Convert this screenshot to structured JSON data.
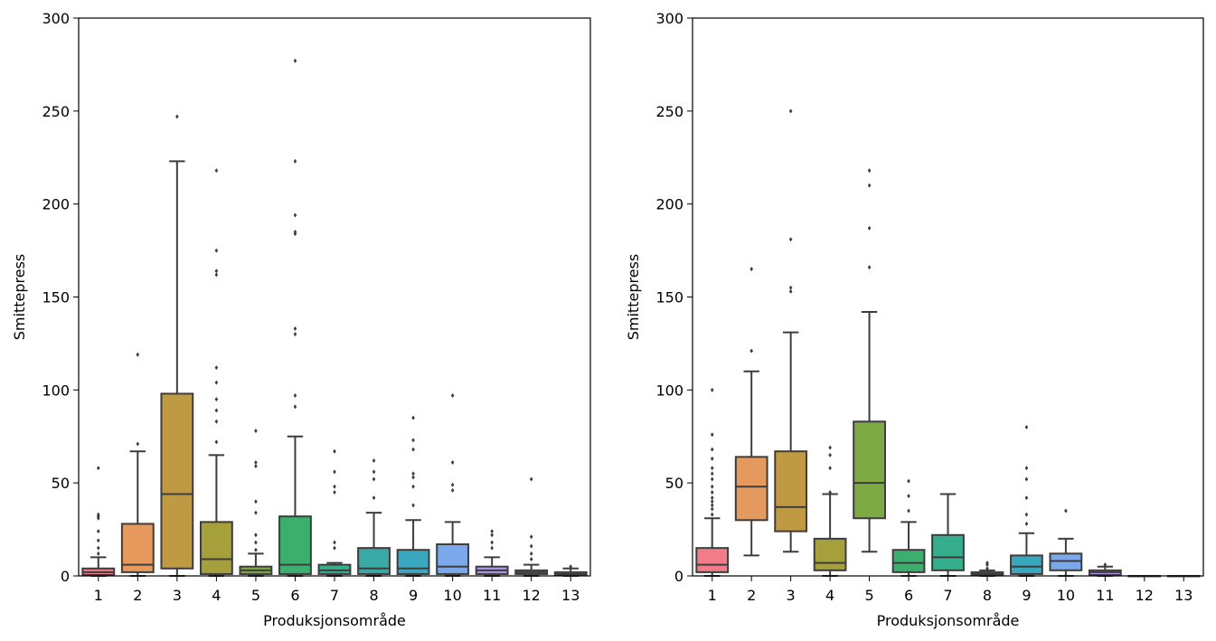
{
  "chart_data": [
    {
      "type": "boxplot",
      "xlabel": "Produksjonsområde",
      "ylabel": "Smittepress",
      "ylim": [
        0,
        300
      ],
      "yticks": [
        0,
        50,
        100,
        150,
        200,
        250,
        300
      ],
      "categories": [
        "1",
        "2",
        "3",
        "4",
        "5",
        "6",
        "7",
        "8",
        "9",
        "10",
        "11",
        "12",
        "13"
      ],
      "boxes": [
        {
          "q1": 0.5,
          "median": 2,
          "q3": 4,
          "whisker_low": 0,
          "whisker_high": 10,
          "color": "#f27c8a",
          "outliers": [
            12,
            15,
            19,
            24,
            31,
            32,
            33,
            58
          ]
        },
        {
          "q1": 2,
          "median": 6,
          "q3": 28,
          "whisker_low": 0,
          "whisker_high": 67,
          "color": "#e5995c",
          "outliers": [
            71,
            119
          ]
        },
        {
          "q1": 4,
          "median": 44,
          "q3": 98,
          "whisker_low": 0,
          "whisker_high": 223,
          "color": "#c09a42",
          "outliers": [
            247
          ]
        },
        {
          "q1": 1,
          "median": 9,
          "q3": 29,
          "whisker_low": 0,
          "whisker_high": 65,
          "color": "#a5a03c",
          "outliers": [
            72,
            83,
            89,
            95,
            104,
            112,
            162,
            164,
            175,
            218
          ]
        },
        {
          "q1": 1,
          "median": 3,
          "q3": 5,
          "whisker_low": 0,
          "whisker_high": 12,
          "color": "#7eaa44",
          "outliers": [
            14,
            18,
            22,
            34,
            40,
            59,
            61,
            78
          ]
        },
        {
          "q1": 1,
          "median": 6,
          "q3": 32,
          "whisker_low": 0,
          "whisker_high": 75,
          "color": "#3caf6e",
          "outliers": [
            91,
            97,
            130,
            133,
            184,
            185,
            194,
            223,
            277
          ]
        },
        {
          "q1": 1,
          "median": 3,
          "q3": 6,
          "whisker_low": 0,
          "whisker_high": 7,
          "color": "#36ad8d",
          "outliers": [
            15,
            18,
            45,
            48,
            56,
            67
          ]
        },
        {
          "q1": 1,
          "median": 4,
          "q3": 15,
          "whisker_low": 0,
          "whisker_high": 34,
          "color": "#38a9a5",
          "outliers": [
            42,
            52,
            56,
            62
          ]
        },
        {
          "q1": 1,
          "median": 4,
          "q3": 14,
          "whisker_low": 0,
          "whisker_high": 30,
          "color": "#39a7bd",
          "outliers": [
            38,
            48,
            53,
            55,
            68,
            73,
            85
          ]
        },
        {
          "q1": 1,
          "median": 5,
          "q3": 17,
          "whisker_low": 0,
          "whisker_high": 29,
          "color": "#7aa8eb",
          "outliers": [
            46,
            49,
            61,
            97
          ]
        },
        {
          "q1": 1,
          "median": 3,
          "q3": 5,
          "whisker_low": 0,
          "whisker_high": 10,
          "color": "#b096ee",
          "outliers": [
            15,
            18,
            22,
            24
          ]
        },
        {
          "q1": 1,
          "median": 2,
          "q3": 3,
          "whisker_low": 0,
          "whisker_high": 6,
          "color": "#e083e0",
          "outliers": [
            9,
            12,
            16,
            21,
            52
          ]
        },
        {
          "q1": 0.5,
          "median": 1,
          "q3": 2,
          "whisker_low": 0,
          "whisker_high": 4,
          "color": "#f17fb9",
          "outliers": [
            5
          ]
        }
      ]
    },
    {
      "type": "boxplot",
      "xlabel": "Produksjonsområde",
      "ylabel": "Smittepress",
      "ylim": [
        0,
        300
      ],
      "yticks": [
        0,
        50,
        100,
        150,
        200,
        250,
        300
      ],
      "categories": [
        "1",
        "2",
        "3",
        "4",
        "5",
        "6",
        "7",
        "8",
        "9",
        "10",
        "11",
        "12",
        "13"
      ],
      "boxes": [
        {
          "q1": 2,
          "median": 6,
          "q3": 15,
          "whisker_low": 0,
          "whisker_high": 31,
          "color": "#f27c8a",
          "outliers": [
            33,
            36,
            38,
            40,
            42,
            45,
            48,
            52,
            55,
            58,
            63,
            68,
            76,
            100
          ]
        },
        {
          "q1": 30,
          "median": 48,
          "q3": 64,
          "whisker_low": 11,
          "whisker_high": 110,
          "color": "#e5995c",
          "outliers": [
            121,
            165
          ]
        },
        {
          "q1": 24,
          "median": 37,
          "q3": 67,
          "whisker_low": 13,
          "whisker_high": 131,
          "color": "#c09a42",
          "outliers": [
            153,
            155,
            181,
            250
          ]
        },
        {
          "q1": 3,
          "median": 7,
          "q3": 20,
          "whisker_low": 0,
          "whisker_high": 44,
          "color": "#a5a03c",
          "outliers": [
            45,
            58,
            65,
            69
          ]
        },
        {
          "q1": 31,
          "median": 50,
          "q3": 83,
          "whisker_low": 13,
          "whisker_high": 142,
          "color": "#7eaa44",
          "outliers": [
            166,
            187,
            210,
            218
          ]
        },
        {
          "q1": 2,
          "median": 7,
          "q3": 14,
          "whisker_low": 0,
          "whisker_high": 29,
          "color": "#3caf6e",
          "outliers": [
            35,
            43,
            51
          ]
        },
        {
          "q1": 3,
          "median": 10,
          "q3": 22,
          "whisker_low": 0,
          "whisker_high": 44,
          "color": "#36ad8d",
          "outliers": []
        },
        {
          "q1": 0.5,
          "median": 1,
          "q3": 2,
          "whisker_low": 0,
          "whisker_high": 3,
          "color": "#38a9a5",
          "outliers": [
            4,
            6,
            7
          ]
        },
        {
          "q1": 1,
          "median": 5,
          "q3": 11,
          "whisker_low": 0,
          "whisker_high": 23,
          "color": "#39a7bd",
          "outliers": [
            28,
            33,
            42,
            52,
            58,
            80
          ]
        },
        {
          "q1": 3,
          "median": 8,
          "q3": 12,
          "whisker_low": 0,
          "whisker_high": 20,
          "color": "#7aa8eb",
          "outliers": [
            35
          ]
        },
        {
          "q1": 0.5,
          "median": 2,
          "q3": 3,
          "whisker_low": 0,
          "whisker_high": 5,
          "color": "#b096ee",
          "outliers": [
            6
          ]
        },
        {
          "q1": 0,
          "median": 0,
          "q3": 0,
          "whisker_low": 0,
          "whisker_high": 0,
          "color": "#e083e0",
          "outliers": []
        },
        {
          "q1": 0,
          "median": 0,
          "q3": 0,
          "whisker_low": 0,
          "whisker_high": 0,
          "color": "#f17fb9",
          "outliers": []
        }
      ]
    }
  ]
}
